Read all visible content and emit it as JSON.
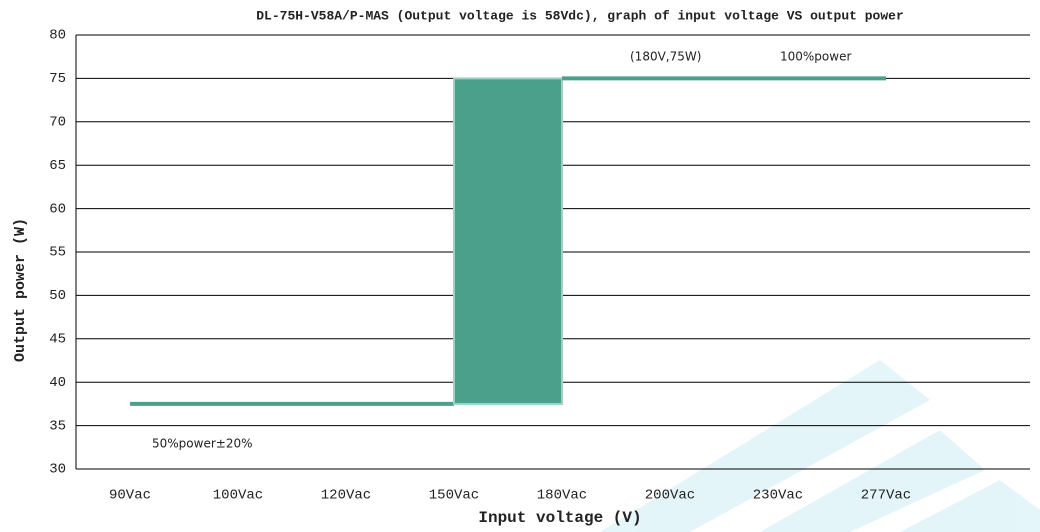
{
  "chart_data": {
    "type": "line",
    "title": "DL-75H-V58A/P-MAS (Output voltage is 58Vdc), graph of input voltage VS output power",
    "x_label": "Input voltage (V)",
    "y_label": "Output power (W)",
    "categories": [
      "90Vac",
      "100Vac",
      "120Vac",
      "150Vac",
      "180Vac",
      "200Vac",
      "230Vac",
      "277Vac"
    ],
    "series": [
      {
        "name": "Output power",
        "color": "#4aa08a",
        "values": [
          37.5,
          37.5,
          37.5,
          37.5,
          75,
          75,
          75,
          75
        ]
      }
    ],
    "annotations": [
      "(180V,75W)",
      "100%power",
      "50%power±20%"
    ],
    "ylim": [
      30,
      80
    ],
    "yticks": [
      30,
      35,
      40,
      45,
      50,
      55,
      60,
      65,
      70,
      75,
      80
    ],
    "grid": true
  }
}
